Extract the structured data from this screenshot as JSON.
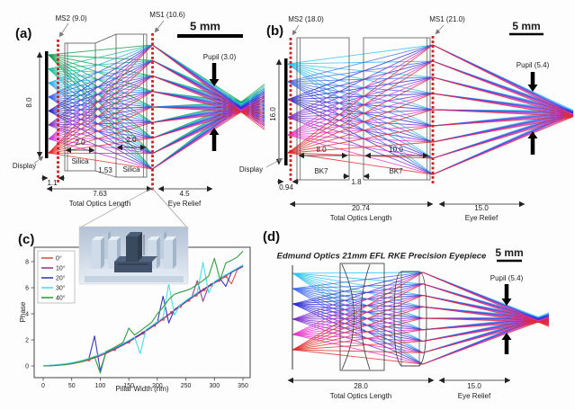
{
  "figure": {
    "background": "#fdfdfd",
    "metasurface_color": "#cf1d1d",
    "panels": {
      "a": {
        "label": "(a)",
        "ms2_label": "MS2 (9.0)",
        "ms1_label": "MS1 (10.6)",
        "scale_bar_label": "5 mm",
        "pupil_label": "Pupil (3.0)",
        "display_label": "Display",
        "display_height": "8.0",
        "display_gap": "1.1",
        "slab1": {
          "width_label": "2.0",
          "material": "Silica"
        },
        "slab_gap": "1.53",
        "slab2": {
          "width_label": "2.0",
          "material": "Silica"
        },
        "total_optics_length_value": "7.63",
        "total_optics_length_label": "Total Optics Length",
        "eye_relief_value": "4.5",
        "eye_relief_label": "Eye Relief",
        "ray_colors": [
          "#0e9e4a",
          "#12c19c",
          "#27b1ea",
          "#2f63e6",
          "#2a28c8",
          "#7c2ed0",
          "#cc2ed6",
          "#e22828"
        ]
      },
      "b": {
        "label": "(b)",
        "ms2_label": "MS2 (18.0)",
        "ms1_label": "MS1 (21.0)",
        "scale_bar_label": "5 mm",
        "pupil_label": "Pupil (5.4)",
        "display_label": "Display",
        "display_height": "16.0",
        "display_gap": "0.94",
        "slab1": {
          "width_label": "8.0",
          "material": "BK7"
        },
        "slab_gap": "1.8",
        "slab2": {
          "width_label": "10.0",
          "material": "BK7"
        },
        "total_optics_length_value": "20.74",
        "total_optics_length_label": "Total Optics Length",
        "eye_relief_value": "15.0",
        "eye_relief_label": "Eye Relief",
        "ray_colors": [
          "#29c2ec",
          "#3f6cf2",
          "#2a2ad0",
          "#7c2fd0",
          "#e433c9",
          "#e22828"
        ]
      },
      "c": {
        "label": "(c)"
      },
      "d": {
        "label": "(d)",
        "title": "Edmund Optics 21mm EFL RKE Precision Eyepiece",
        "scale_bar_label": "5 mm",
        "pupil_label": "Pupil (5.4)",
        "total_optics_length_value": "28.0",
        "total_optics_length_label": "Total Optics Length",
        "eye_relief_value": "15.0",
        "eye_relief_label": "Eye Relief",
        "ray_colors": [
          "#29c2ec",
          "#3f6cf2",
          "#2a2ad0",
          "#7c2fd0",
          "#e433c9",
          "#e22828"
        ]
      }
    }
  },
  "chart_data": {
    "type": "line",
    "title": "",
    "xlabel": "Pillar Width (nm)",
    "ylabel": "Phase",
    "xlim": [
      -18,
      362
    ],
    "ylim": [
      -1.2,
      9.3
    ],
    "xticks": [
      0,
      50,
      100,
      150,
      200,
      250,
      300,
      350
    ],
    "yticks": [
      0,
      2,
      4,
      6,
      8
    ],
    "grid": false,
    "legend_position": "upper left",
    "x": [
      0,
      10,
      20,
      30,
      40,
      50,
      60,
      70,
      80,
      90,
      100,
      110,
      120,
      130,
      140,
      150,
      160,
      170,
      180,
      190,
      200,
      210,
      220,
      230,
      240,
      250,
      260,
      270,
      280,
      290,
      300,
      310,
      320,
      330,
      340,
      350
    ],
    "series": [
      {
        "name": "0°",
        "color": "#d9534a",
        "values": [
          0,
          0.01,
          0.03,
          0.06,
          0.1,
          0.16,
          0.24,
          0.34,
          0.47,
          0.62,
          0.78,
          0.96,
          1.16,
          1.37,
          1.6,
          1.84,
          2.1,
          2.37,
          2.66,
          2.96,
          3.27,
          3.59,
          3.92,
          4.25,
          4.57,
          4.89,
          5.2,
          5.5,
          5.79,
          6.07,
          6.35,
          6.62,
          6.88,
          6.3,
          7.38,
          7.62
        ],
        "marker_x": [
          80,
          125,
          150,
          175,
          195,
          210,
          225,
          240,
          255,
          268,
          282,
          295,
          308,
          320
        ]
      },
      {
        "name": "10°",
        "color": "#9b3a97",
        "values": [
          0,
          0.02,
          0.05,
          0.09,
          0.13,
          0.19,
          0.28,
          0.38,
          0.51,
          0.66,
          0.82,
          1.0,
          1.2,
          1.41,
          1.64,
          1.88,
          2.14,
          2.41,
          2.7,
          3.0,
          3.31,
          3.63,
          3.96,
          4.29,
          4.61,
          4.93,
          5.24,
          6.55,
          4.95,
          6.15,
          6.39,
          6.66,
          6.92,
          7.17,
          7.42,
          7.66
        ]
      },
      {
        "name": "20°",
        "color": "#3a3ab4",
        "values": [
          0,
          0.03,
          0.07,
          0.11,
          0.16,
          0.22,
          0.31,
          0.41,
          0.54,
          2.3,
          -0.35,
          1.03,
          1.23,
          1.44,
          1.67,
          1.91,
          2.17,
          2.44,
          2.73,
          3.03,
          3.34,
          5.35,
          3.3,
          4.32,
          4.64,
          4.96,
          5.27,
          5.57,
          5.86,
          6.14,
          6.42,
          6.69,
          6.1,
          7.2,
          7.45,
          7.69
        ]
      },
      {
        "name": "30°",
        "color": "#45e0e6",
        "values": [
          0,
          0.04,
          0.08,
          0.13,
          0.18,
          0.25,
          0.34,
          0.45,
          0.58,
          0.73,
          0.9,
          1.08,
          1.28,
          1.49,
          1.72,
          1.96,
          2.22,
          0.95,
          2.78,
          3.08,
          3.39,
          3.71,
          6.3,
          3.9,
          4.69,
          5.01,
          5.32,
          5.62,
          7.95,
          5.6,
          6.47,
          6.74,
          7.0,
          7.25,
          7.5,
          7.74
        ]
      },
      {
        "name": "40°",
        "color": "#2f9e41",
        "values": [
          0,
          0.01,
          0.03,
          0.07,
          0.11,
          0.18,
          0.27,
          0.38,
          0.53,
          0.7,
          -0.55,
          1.1,
          1.31,
          1.55,
          1.81,
          2.9,
          2.37,
          2.68,
          3.01,
          3.34,
          4.0,
          4.5,
          5.1,
          5.5,
          5.65,
          5.78,
          5.95,
          6.25,
          6.55,
          6.9,
          8.25,
          6.6,
          7.9,
          8.1,
          8.35,
          8.8
        ]
      }
    ]
  }
}
